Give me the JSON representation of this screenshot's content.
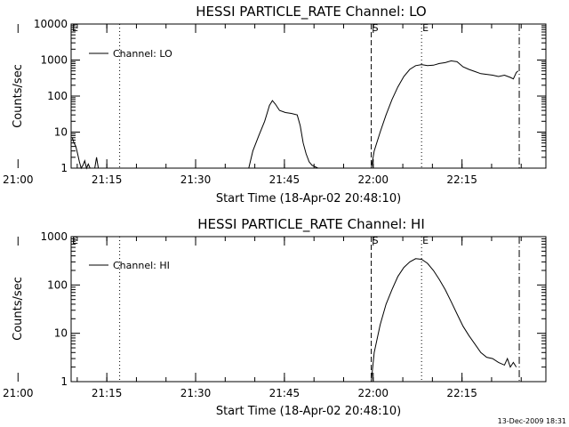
{
  "chart_data": [
    {
      "type": "line",
      "title": "HESSI PARTICLE_RATE Channel: LO",
      "xlabel": "Start Time (18-Apr-02 20:48:10)",
      "ylabel": "Counts/sec",
      "y_scale": "log",
      "ylim": [
        1,
        10000
      ],
      "y_ticks": [
        "1",
        "10",
        "100",
        "1000",
        "10000"
      ],
      "x_ticks": [
        "21:00",
        "21:15",
        "21:30",
        "21:45",
        "22:00",
        "22:15"
      ],
      "xlim_minutes": [
        20.8,
        101.0
      ],
      "legend": {
        "position": "top-left",
        "entries": [
          "Channel: LO"
        ]
      },
      "markers": [
        {
          "label": "",
          "minute": 29.0,
          "style": "dotted"
        },
        {
          "label": "S",
          "minute": 71.5,
          "style": "dashed"
        },
        {
          "label": "E",
          "minute": 80.0,
          "style": "dotted"
        },
        {
          "label": "",
          "minute": 96.5,
          "style": "dashdot"
        },
        {
          "label": "E",
          "minute": 21.3,
          "style": "corner"
        }
      ],
      "series": [
        {
          "name": "Channel: LO",
          "segments": [
            {
              "x": [
                21.0,
                21.3,
                21.6,
                21.9,
                22.2,
                22.5,
                22.8,
                23.1,
                23.4,
                23.7,
                24.0
              ],
              "y": [
                7,
                5,
                4,
                2.5,
                1.5,
                1,
                1.2,
                1.6,
                1,
                1.3,
                1
              ]
            },
            {
              "x": [
                24.8,
                25.1,
                25.4
              ],
              "y": [
                1,
                2,
                1
              ]
            },
            {
              "x": [
                50.8,
                51.5,
                52.5,
                53.5,
                54.3,
                54.8,
                55.3,
                56.0,
                57.0,
                58.0,
                59.0,
                59.5,
                60.0,
                60.5,
                61.0,
                61.5,
                62.5
              ],
              "y": [
                1,
                3,
                8,
                20,
                55,
                75,
                60,
                40,
                35,
                33,
                30,
                15,
                5,
                2.5,
                1.5,
                1.2,
                1
              ]
            },
            {
              "x": [
                71.5,
                72.0,
                73.0,
                74.0,
                75.0,
                76.0,
                77.0,
                78.0,
                79.0,
                80.0,
                81.0,
                82.0,
                83.0,
                84.0,
                85.0,
                86.0,
                87.0,
                88.0,
                89.0,
                90.0,
                91.0,
                92.0,
                93.0,
                94.0,
                95.0,
                95.5,
                96.0,
                96.3
              ],
              "y": [
                1,
                3,
                10,
                30,
                80,
                180,
                350,
                550,
                700,
                750,
                700,
                720,
                800,
                850,
                950,
                900,
                650,
                550,
                480,
                420,
                400,
                380,
                350,
                380,
                330,
                300,
                450,
                500
              ]
            }
          ]
        }
      ]
    },
    {
      "type": "line",
      "title": "HESSI PARTICLE_RATE Channel: HI",
      "xlabel": "Start Time (18-Apr-02 20:48:10)",
      "ylabel": "Counts/sec",
      "y_scale": "log",
      "ylim": [
        1,
        1000
      ],
      "y_ticks": [
        "1",
        "10",
        "100",
        "1000"
      ],
      "x_ticks": [
        "21:00",
        "21:15",
        "21:30",
        "21:45",
        "22:00",
        "22:15"
      ],
      "xlim_minutes": [
        20.8,
        101.0
      ],
      "legend": {
        "position": "top-left",
        "entries": [
          "Channel: HI"
        ]
      },
      "markers": [
        {
          "label": "",
          "minute": 29.0,
          "style": "dotted"
        },
        {
          "label": "S",
          "minute": 71.5,
          "style": "dashed"
        },
        {
          "label": "E",
          "minute": 80.0,
          "style": "dotted"
        },
        {
          "label": "",
          "minute": 96.5,
          "style": "dashdot"
        },
        {
          "label": "E",
          "minute": 21.3,
          "style": "corner"
        }
      ],
      "series": [
        {
          "name": "Channel: HI",
          "segments": [
            {
              "x": [
                71.5,
                72.0,
                73.0,
                74.0,
                75.0,
                76.0,
                77.0,
                78.0,
                79.0,
                80.0,
                81.0,
                82.0,
                83.0,
                84.0,
                85.0,
                86.0,
                87.0,
                88.0,
                89.0,
                90.0,
                91.0,
                92.0,
                93.0,
                94.0,
                94.5,
                95.0,
                95.5,
                96.0
              ],
              "y": [
                1,
                4,
                15,
                40,
                80,
                150,
                230,
                300,
                350,
                340,
                280,
                200,
                130,
                80,
                45,
                25,
                14,
                9,
                6,
                4,
                3.2,
                3,
                2.5,
                2.2,
                3,
                2,
                2.5,
                2
              ]
            }
          ]
        }
      ]
    }
  ],
  "footer": {
    "timestamp": "13-Dec-2009 18:31"
  }
}
